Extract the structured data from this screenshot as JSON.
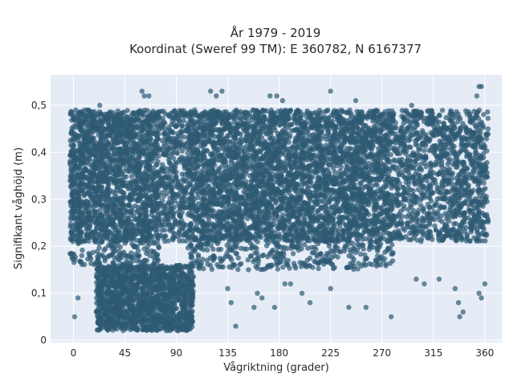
{
  "chart_data": {
    "type": "scatter",
    "title_line1": "År 1979 - 2019",
    "title_line2": "Koordinat (Sweref 99 TM): E 360782, N 6167377",
    "xlabel": "Vågriktning (grader)",
    "ylabel": "Signifikant våghöjd (m)",
    "xlim": [
      -20,
      375
    ],
    "ylim": [
      -0.005,
      0.565
    ],
    "x_ticks": [
      0,
      45,
      90,
      135,
      180,
      225,
      270,
      315,
      360
    ],
    "x_tick_labels": [
      "0",
      "45",
      "90",
      "135",
      "180",
      "225",
      "270",
      "315",
      "360"
    ],
    "y_ticks": [
      0,
      0.1,
      0.2,
      0.3,
      0.4,
      0.5
    ],
    "y_tick_labels": [
      "0",
      "0,1",
      "0,2",
      "0,3",
      "0,4",
      "0,5"
    ],
    "grid": true,
    "background": "#e5ecf6",
    "grid_color": "#ffffff",
    "marker_color": "#2e5a73",
    "dense_band": [
      {
        "x_range": [
          -3,
          363
        ],
        "y_range": [
          0.21,
          0.49
        ]
      },
      {
        "x_range": [
          -3,
          75
        ],
        "y_range": [
          0.16,
          0.49
        ]
      },
      {
        "x_range": [
          100,
          280
        ],
        "y_range": [
          0.15,
          0.49
        ]
      },
      {
        "x_range": [
          20,
          105
        ],
        "y_range": [
          0.02,
          0.16
        ]
      }
    ],
    "scattered_points": [
      {
        "x": 60,
        "y": 0.53
      },
      {
        "x": 62,
        "y": 0.52
      },
      {
        "x": 66,
        "y": 0.52
      },
      {
        "x": 120,
        "y": 0.53
      },
      {
        "x": 125,
        "y": 0.52
      },
      {
        "x": 130,
        "y": 0.53
      },
      {
        "x": 172,
        "y": 0.52
      },
      {
        "x": 178,
        "y": 0.52
      },
      {
        "x": 183,
        "y": 0.51
      },
      {
        "x": 225,
        "y": 0.53
      },
      {
        "x": 247,
        "y": 0.51
      },
      {
        "x": 296,
        "y": 0.5
      },
      {
        "x": 355,
        "y": 0.54
      },
      {
        "x": 357,
        "y": 0.54
      },
      {
        "x": 353,
        "y": 0.52
      },
      {
        "x": 135,
        "y": 0.11
      },
      {
        "x": 138,
        "y": 0.08
      },
      {
        "x": 142,
        "y": 0.03
      },
      {
        "x": 158,
        "y": 0.07
      },
      {
        "x": 161,
        "y": 0.1
      },
      {
        "x": 165,
        "y": 0.09
      },
      {
        "x": 176,
        "y": 0.07
      },
      {
        "x": 185,
        "y": 0.12
      },
      {
        "x": 190,
        "y": 0.12
      },
      {
        "x": 200,
        "y": 0.1
      },
      {
        "x": 207,
        "y": 0.08
      },
      {
        "x": 225,
        "y": 0.11
      },
      {
        "x": 241,
        "y": 0.07
      },
      {
        "x": 256,
        "y": 0.07
      },
      {
        "x": 278,
        "y": 0.05
      },
      {
        "x": 300,
        "y": 0.13
      },
      {
        "x": 307,
        "y": 0.12
      },
      {
        "x": 320,
        "y": 0.13
      },
      {
        "x": 334,
        "y": 0.11
      },
      {
        "x": 337,
        "y": 0.08
      },
      {
        "x": 338,
        "y": 0.05
      },
      {
        "x": 341,
        "y": 0.06
      },
      {
        "x": 355,
        "y": 0.1
      },
      {
        "x": 357,
        "y": 0.09
      },
      {
        "x": 360,
        "y": 0.12
      },
      {
        "x": 1,
        "y": 0.05
      },
      {
        "x": 4,
        "y": 0.09
      },
      {
        "x": 2,
        "y": 0.49
      },
      {
        "x": 12,
        "y": 0.49
      },
      {
        "x": 23,
        "y": 0.5
      }
    ]
  }
}
